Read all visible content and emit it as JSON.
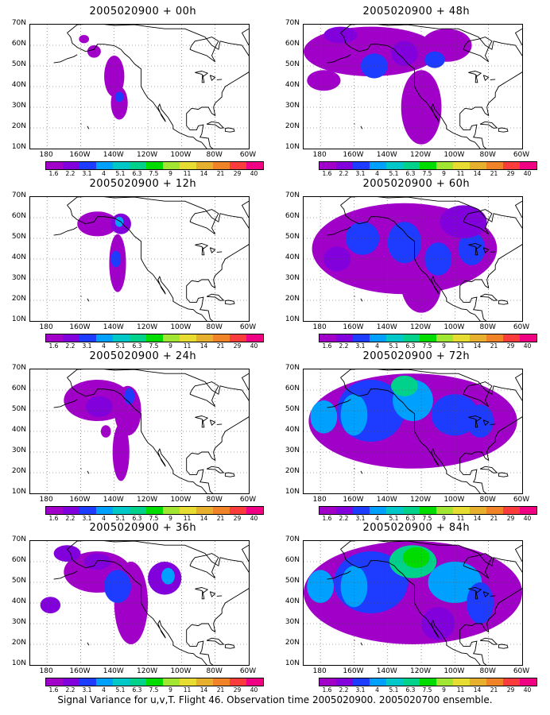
{
  "caption": "Signal Variance for u,v,T. Flight 46. Observation time 2005020900. 2005020700 ensemble.",
  "colorbar": {
    "labels": [
      "1.6",
      "2.2",
      "3.1",
      "4",
      "5.1",
      "6.3",
      "7.5",
      "9",
      "11",
      "14",
      "21",
      "29",
      "40"
    ],
    "colors": [
      "#a000c8",
      "#8200dc",
      "#1e3cff",
      "#00a0ff",
      "#00c8c8",
      "#00d28c",
      "#00dc00",
      "#a0e632",
      "#e6dc32",
      "#e6af2d",
      "#f08228",
      "#fa3c3c",
      "#f00082"
    ]
  },
  "axes": {
    "y_ticks": [
      "70N",
      "60N",
      "50N",
      "40N",
      "30N",
      "20N",
      "10N"
    ],
    "x_ticks": [
      "180",
      "160W",
      "140W",
      "120W",
      "100W",
      "80W",
      "60W"
    ]
  },
  "panels": [
    {
      "title": "2005020900 + 00h",
      "lead_hours": 0
    },
    {
      "title": "2005020900 + 48h",
      "lead_hours": 48
    },
    {
      "title": "2005020900 + 12h",
      "lead_hours": 12
    },
    {
      "title": "2005020900 + 60h",
      "lead_hours": 60
    },
    {
      "title": "2005020900 + 24h",
      "lead_hours": 24
    },
    {
      "title": "2005020900 + 72h",
      "lead_hours": 72
    },
    {
      "title": "2005020900 + 36h",
      "lead_hours": 36
    },
    {
      "title": "2005020900 + 84h",
      "lead_hours": 84
    }
  ]
}
